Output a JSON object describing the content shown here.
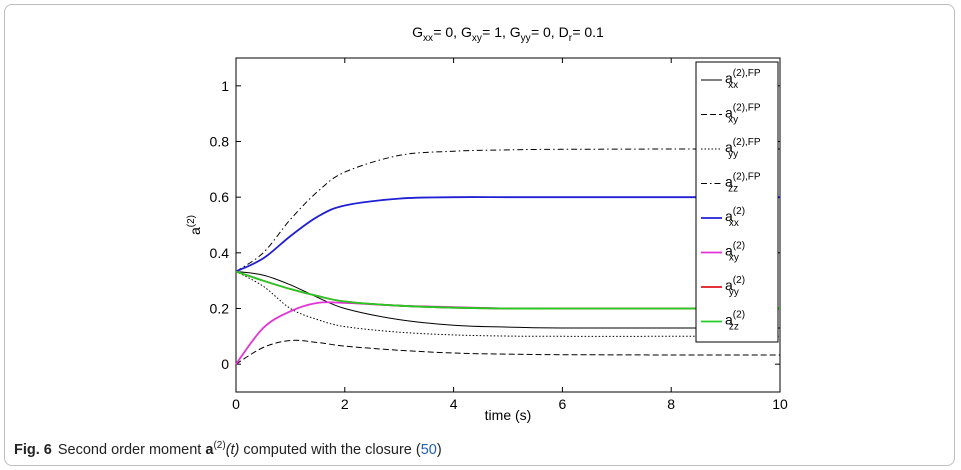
{
  "figure": {
    "label": "Fig. 6",
    "caption_lead": "Second order moment ",
    "symbol": "a",
    "superscript": "(2)",
    "arg": "(t)",
    "caption_mid": " computed with the closure (",
    "ref": "50",
    "caption_tail": ")"
  },
  "chart_data": {
    "type": "line",
    "title_parts": [
      {
        "text": "G",
        "sub": "xx"
      },
      {
        "text": " = 0, G",
        "sub": "xy"
      },
      {
        "text": " = 1, G",
        "sub": "yy"
      },
      {
        "text": " = 0, D",
        "sub": "r"
      },
      {
        "text": " = 0.1"
      }
    ],
    "xlabel": "time (s)",
    "ylabel_base": "a",
    "ylabel_sup": "(2)",
    "xlim": [
      0,
      10
    ],
    "ylim": [
      -0.1,
      1.1
    ],
    "xticks": [
      0,
      2,
      4,
      6,
      8,
      10
    ],
    "yticks": [
      0,
      0.2,
      0.4,
      0.6,
      0.8,
      1
    ],
    "grid": false,
    "legend_position": "top-right",
    "x": [
      0,
      0.5,
      1,
      1.5,
      2,
      3,
      4,
      5,
      6,
      8,
      10
    ],
    "series": [
      {
        "name_base": "a",
        "name_sup": "(2),FP",
        "name_sub": "xx",
        "color": "#000000",
        "dash": "solid",
        "values": [
          0.333,
          0.32,
          0.285,
          0.24,
          0.2,
          0.16,
          0.14,
          0.133,
          0.13,
          0.13,
          0.13
        ]
      },
      {
        "name_base": "a",
        "name_sup": "(2),FP",
        "name_sub": "xy",
        "color": "#000000",
        "dash": "dashed",
        "values": [
          0.0,
          0.06,
          0.085,
          0.078,
          0.065,
          0.05,
          0.04,
          0.036,
          0.034,
          0.033,
          0.033
        ]
      },
      {
        "name_base": "a",
        "name_sup": "(2),FP",
        "name_sub": "yy",
        "color": "#000000",
        "dash": "dotted",
        "values": [
          0.333,
          0.28,
          0.2,
          0.16,
          0.135,
          0.115,
          0.105,
          0.101,
          0.1,
          0.1,
          0.1
        ]
      },
      {
        "name_base": "a",
        "name_sup": "(2),FP",
        "name_sub": "zz",
        "color": "#000000",
        "dash": "dashdot",
        "values": [
          0.333,
          0.4,
          0.52,
          0.62,
          0.69,
          0.75,
          0.765,
          0.77,
          0.772,
          0.773,
          0.773
        ]
      },
      {
        "name_base": "a",
        "name_sup": "(2)",
        "name_sub": "xx",
        "color": "#1f1fd6",
        "dash": "solid",
        "values": [
          0.333,
          0.38,
          0.46,
          0.53,
          0.57,
          0.595,
          0.6,
          0.6,
          0.6,
          0.6,
          0.6
        ]
      },
      {
        "name_base": "a",
        "name_sup": "(2)",
        "name_sub": "xy",
        "color": "#e233d6",
        "dash": "solid",
        "values": [
          0.0,
          0.13,
          0.19,
          0.22,
          0.22,
          0.21,
          0.205,
          0.2,
          0.2,
          0.2,
          0.2
        ]
      },
      {
        "name_base": "a",
        "name_sup": "(2)",
        "name_sub": "yy",
        "color": "#e0141e",
        "dash": "solid",
        "values": [
          0.333,
          0.3,
          0.27,
          0.245,
          0.225,
          0.21,
          0.203,
          0.2,
          0.2,
          0.2,
          0.2
        ]
      },
      {
        "name_base": "a",
        "name_sup": "(2)",
        "name_sub": "zz",
        "color": "#22cc22",
        "dash": "solid",
        "values": [
          0.333,
          0.3,
          0.27,
          0.245,
          0.225,
          0.21,
          0.203,
          0.2,
          0.2,
          0.2,
          0.2
        ]
      }
    ]
  }
}
